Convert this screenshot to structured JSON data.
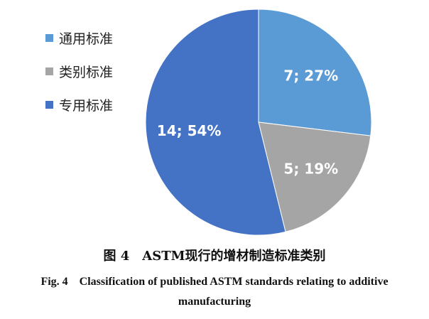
{
  "chart_data": {
    "type": "pie",
    "legend_position": "left",
    "slices": [
      {
        "name": "通用标准",
        "value": 7,
        "percent": 27,
        "label": "7; 27%",
        "color": "#5b9bd5"
      },
      {
        "name": "类别标准",
        "value": 5,
        "percent": 19,
        "label": "5; 19%",
        "color": "#a5a5a5"
      },
      {
        "name": "专用标准",
        "value": 14,
        "percent": 54,
        "label": "14; 54%",
        "color": "#4472c4"
      }
    ]
  },
  "caption": {
    "cn": "图 4　ASTM现行的增材制造标准类别",
    "en": "Fig. 4　Classification of published ASTM standards relating to additive manufacturing"
  }
}
